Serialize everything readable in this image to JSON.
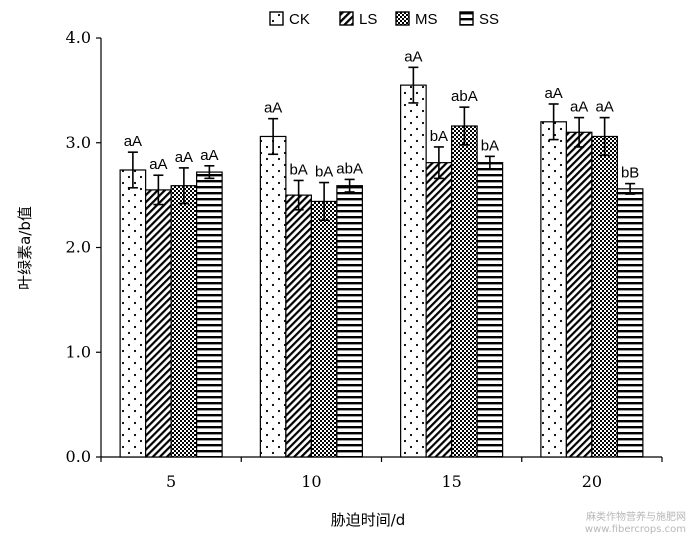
{
  "chart_data": {
    "type": "bar",
    "xlabel": "胁迫时间/d",
    "ylabel": "叶绿素a/b值",
    "ylim": [
      0,
      4.0
    ],
    "yticks": [
      "0.0",
      "1.0",
      "2.0",
      "3.0",
      "4.0"
    ],
    "categories": [
      "5",
      "10",
      "15",
      "20"
    ],
    "legend_position": "top",
    "grid": false,
    "series": [
      {
        "name": "CK",
        "pattern": "dots",
        "values": [
          2.74,
          3.06,
          3.55,
          3.2
        ],
        "errors": [
          0.17,
          0.17,
          0.17,
          0.17
        ],
        "labels": [
          "aA",
          "aA",
          "aA",
          "aA"
        ]
      },
      {
        "name": "LS",
        "pattern": "diagonal",
        "values": [
          2.55,
          2.5,
          2.81,
          3.1
        ],
        "errors": [
          0.14,
          0.14,
          0.15,
          0.14
        ],
        "labels": [
          "aA",
          "bA",
          "bA",
          "aA"
        ]
      },
      {
        "name": "MS",
        "pattern": "checker",
        "values": [
          2.59,
          2.44,
          3.16,
          3.06
        ],
        "errors": [
          0.17,
          0.18,
          0.18,
          0.18
        ],
        "labels": [
          "aA",
          "bA",
          "abA",
          "aA"
        ]
      },
      {
        "name": "SS",
        "pattern": "horizontal",
        "values": [
          2.72,
          2.59,
          2.81,
          2.56
        ],
        "errors": [
          0.06,
          0.06,
          0.06,
          0.05
        ],
        "labels": [
          "aA",
          "abA",
          "bA",
          "bB"
        ]
      }
    ]
  },
  "watermark": {
    "line1": "麻类作物营养与施肥网",
    "line2": "www.fibercrops.com"
  }
}
